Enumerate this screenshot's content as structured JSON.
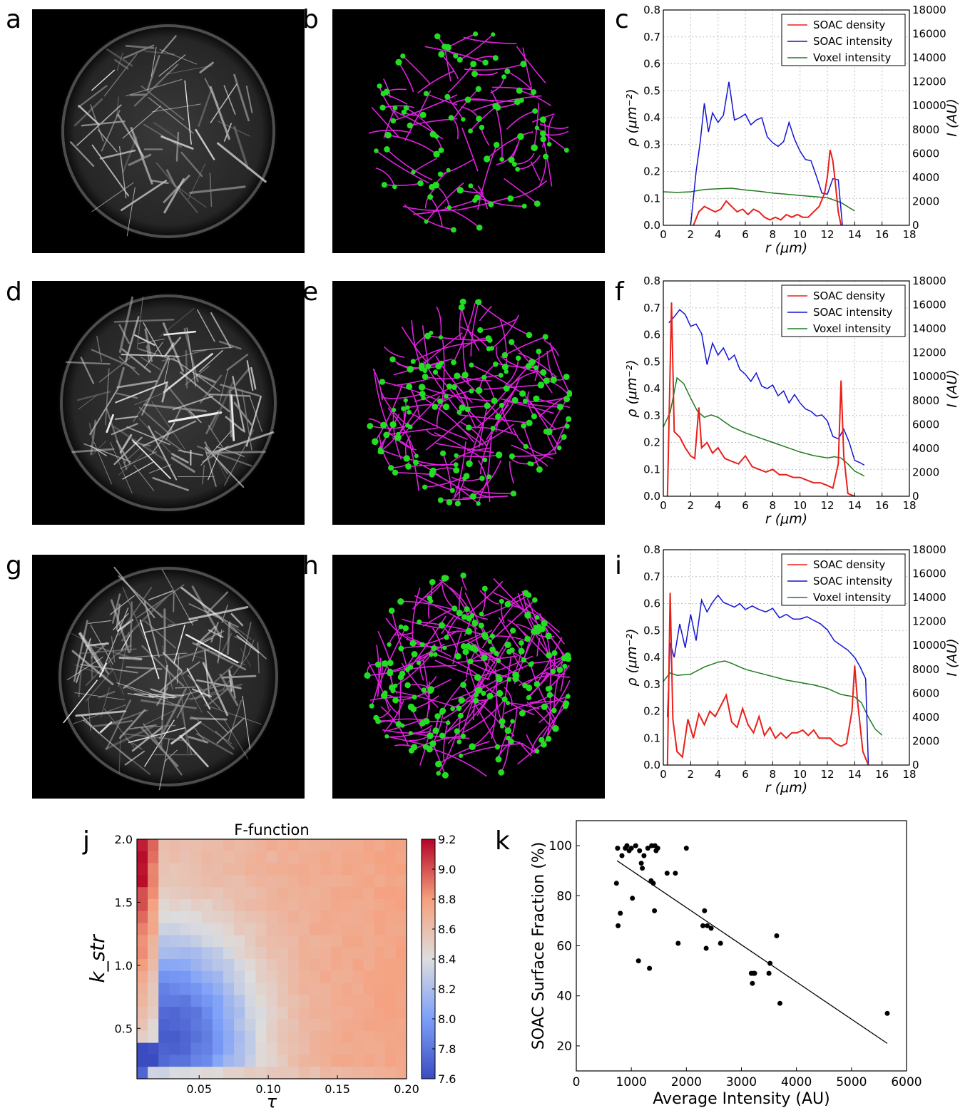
{
  "panel_letters": [
    "a",
    "b",
    "c",
    "d",
    "e",
    "f",
    "g",
    "h",
    "i",
    "j",
    "k"
  ],
  "colors": {
    "density": "#e8201a",
    "soac_intensity": "#1414d2",
    "voxel": "#1f7a1f",
    "filament": "#e020e0",
    "node": "#22dd22",
    "regression": "#000000"
  },
  "legend_labels": [
    "SOAC density",
    "SOAC intensity",
    "Voxel intensity"
  ],
  "profile_axes": {
    "xlabel": "r (μm)",
    "ylabel_left": "ρ (μm⁻²)",
    "ylabel_right": "I (AU)",
    "x_ticks": [
      "0",
      "2",
      "4",
      "6",
      "8",
      "10",
      "12",
      "14",
      "16",
      "18"
    ],
    "yleft_ticks": [
      "0.0",
      "0.1",
      "0.2",
      "0.3",
      "0.4",
      "0.5",
      "0.6",
      "0.7",
      "0.8"
    ],
    "yright_ticks": [
      "0",
      "2000",
      "4000",
      "6000",
      "8000",
      "10000",
      "12000",
      "14000",
      "16000",
      "18000"
    ]
  },
  "heatmap": {
    "title": "F-function",
    "xlabel": "τ",
    "ylabel": "k_str",
    "x_ticks": [
      "0.05",
      "0.10",
      "0.15",
      "0.20"
    ],
    "y_ticks": [
      "0.5",
      "1.0",
      "1.5",
      "2.0"
    ],
    "cbar_ticks": [
      "9.2",
      "9.0",
      "8.8",
      "8.6",
      "8.4",
      "8.2",
      "8.0",
      "7.8",
      "7.6"
    ]
  },
  "scatter_axes": {
    "xlabel": "Average Intensity (AU)",
    "ylabel": "SOAC Surface Fraction (%)",
    "x_ticks": [
      "0",
      "1000",
      "2000",
      "3000",
      "4000",
      "5000",
      "6000"
    ],
    "y_ticks": [
      "20",
      "40",
      "60",
      "80",
      "100"
    ]
  },
  "chart_data": [
    {
      "panel": "c",
      "type": "line",
      "xlim": [
        0,
        18
      ],
      "ylim_left": [
        0,
        0.8
      ],
      "ylim_right": [
        0,
        18000
      ],
      "grid": true,
      "legend_position": "top-right",
      "series": [
        {
          "name": "SOAC density",
          "axis": "left",
          "x": [
            2.2,
            2.6,
            3.0,
            3.4,
            3.8,
            4.2,
            4.6,
            5.0,
            5.4,
            5.8,
            6.2,
            6.6,
            7.0,
            7.4,
            7.8,
            8.2,
            8.6,
            9.0,
            9.4,
            9.8,
            10.2,
            10.6,
            11.0,
            11.4,
            11.8,
            12.0,
            12.2,
            12.4,
            12.6,
            12.8,
            13.0
          ],
          "y": [
            0.0,
            0.05,
            0.07,
            0.06,
            0.05,
            0.06,
            0.09,
            0.07,
            0.05,
            0.06,
            0.04,
            0.06,
            0.05,
            0.03,
            0.02,
            0.03,
            0.02,
            0.04,
            0.03,
            0.04,
            0.03,
            0.03,
            0.05,
            0.07,
            0.12,
            0.18,
            0.28,
            0.24,
            0.15,
            0.05,
            0.0
          ]
        },
        {
          "name": "SOAC intensity",
          "axis": "right",
          "x": [
            2.0,
            2.4,
            2.7,
            3.0,
            3.3,
            3.6,
            4.0,
            4.4,
            4.8,
            5.2,
            5.6,
            6.0,
            6.4,
            6.8,
            7.2,
            7.6,
            8.0,
            8.4,
            8.8,
            9.2,
            9.6,
            10.0,
            10.4,
            10.8,
            11.2,
            11.6,
            12.0,
            12.4,
            12.8,
            13.1
          ],
          "y": [
            0,
            4500,
            7000,
            10200,
            7800,
            9400,
            8600,
            9200,
            12000,
            8800,
            9000,
            9300,
            8400,
            8800,
            9000,
            7400,
            6900,
            6600,
            7000,
            8600,
            7200,
            6200,
            5500,
            5400,
            4100,
            2700,
            2600,
            3900,
            3800,
            0
          ]
        },
        {
          "name": "Voxel intensity",
          "axis": "right",
          "x": [
            0,
            1,
            2,
            3,
            4,
            5,
            6,
            7,
            8,
            9,
            10,
            11,
            12,
            13,
            14
          ],
          "y": [
            2800,
            2750,
            2800,
            3000,
            3050,
            3100,
            2950,
            2850,
            2700,
            2600,
            2500,
            2400,
            2300,
            1900,
            1200
          ]
        }
      ]
    },
    {
      "panel": "f",
      "type": "line",
      "xlim": [
        0,
        18
      ],
      "ylim_left": [
        0,
        0.8
      ],
      "ylim_right": [
        0,
        18000
      ],
      "grid": true,
      "legend_position": "top-right",
      "series": [
        {
          "name": "SOAC density",
          "axis": "left",
          "x": [
            0.3,
            0.6,
            0.8,
            1.2,
            1.6,
            2.0,
            2.3,
            2.6,
            2.8,
            3.2,
            3.6,
            4.0,
            4.5,
            5.0,
            5.5,
            6.0,
            6.5,
            7.0,
            7.5,
            8.0,
            8.5,
            9.0,
            9.5,
            10.0,
            10.5,
            11.0,
            11.5,
            12.0,
            12.4,
            12.8,
            13.0,
            13.2,
            13.5,
            14.0
          ],
          "y": [
            0.0,
            0.72,
            0.24,
            0.22,
            0.18,
            0.15,
            0.14,
            0.33,
            0.18,
            0.2,
            0.16,
            0.18,
            0.14,
            0.13,
            0.12,
            0.15,
            0.11,
            0.1,
            0.09,
            0.1,
            0.08,
            0.08,
            0.07,
            0.07,
            0.06,
            0.05,
            0.05,
            0.04,
            0.03,
            0.12,
            0.43,
            0.15,
            0.01,
            0.0
          ]
        },
        {
          "name": "SOAC intensity",
          "axis": "right",
          "x": [
            0.4,
            0.8,
            1.2,
            1.6,
            2.0,
            2.4,
            2.8,
            3.2,
            3.6,
            4.0,
            4.4,
            4.8,
            5.2,
            5.6,
            6.0,
            6.4,
            6.8,
            7.2,
            7.6,
            8.0,
            8.4,
            8.8,
            9.2,
            9.6,
            10.0,
            10.4,
            10.8,
            11.2,
            11.6,
            12.0,
            12.4,
            12.8,
            13.2,
            13.6,
            14.0,
            14.4,
            14.7
          ],
          "y": [
            14500,
            15000,
            15600,
            15200,
            14200,
            14400,
            13600,
            11000,
            12800,
            11800,
            12400,
            11400,
            11800,
            10600,
            10200,
            9600,
            10300,
            9200,
            9000,
            9300,
            8400,
            8800,
            7800,
            8500,
            7800,
            7300,
            7100,
            6700,
            6800,
            6300,
            5000,
            4800,
            5600,
            4500,
            3000,
            2800,
            2600
          ]
        },
        {
          "name": "Voxel intensity",
          "axis": "right",
          "x": [
            0,
            0.5,
            1.0,
            1.5,
            2.0,
            2.5,
            3.0,
            3.5,
            4.0,
            5,
            6,
            7,
            8,
            9,
            10,
            11,
            12,
            12.5,
            13,
            13.5,
            14,
            14.7
          ],
          "y": [
            5800,
            7000,
            9900,
            9400,
            8200,
            7100,
            6600,
            6800,
            6600,
            5800,
            5300,
            4900,
            4500,
            4100,
            3700,
            3400,
            3200,
            3300,
            3200,
            2700,
            2100,
            1700
          ]
        }
      ]
    },
    {
      "panel": "i",
      "type": "line",
      "xlim": [
        0,
        18
      ],
      "ylim_left": [
        0,
        0.8
      ],
      "ylim_right": [
        0,
        18000
      ],
      "grid": true,
      "legend_position": "top-right",
      "series": [
        {
          "name": "SOAC density",
          "axis": "left",
          "x": [
            0.3,
            0.5,
            0.7,
            1.0,
            1.4,
            1.8,
            2.2,
            2.6,
            3.0,
            3.4,
            3.8,
            4.2,
            4.6,
            5.0,
            5.4,
            5.8,
            6.2,
            6.6,
            7.0,
            7.4,
            7.8,
            8.2,
            8.6,
            9.0,
            9.4,
            9.8,
            10.2,
            10.6,
            11.0,
            11.4,
            11.8,
            12.2,
            12.6,
            13.0,
            13.4,
            13.8,
            14.0,
            14.2,
            14.6,
            15.0
          ],
          "y": [
            0.0,
            0.64,
            0.17,
            0.05,
            0.03,
            0.17,
            0.1,
            0.19,
            0.15,
            0.2,
            0.18,
            0.22,
            0.26,
            0.16,
            0.14,
            0.21,
            0.15,
            0.12,
            0.18,
            0.11,
            0.14,
            0.1,
            0.12,
            0.1,
            0.12,
            0.12,
            0.13,
            0.11,
            0.13,
            0.1,
            0.1,
            0.1,
            0.08,
            0.07,
            0.08,
            0.2,
            0.37,
            0.24,
            0.05,
            0.0
          ]
        },
        {
          "name": "SOAC intensity",
          "axis": "right",
          "x": [
            0.3,
            0.5,
            0.8,
            1.2,
            1.6,
            2.0,
            2.4,
            2.8,
            3.2,
            3.6,
            4.0,
            4.4,
            4.8,
            5.2,
            5.6,
            6.0,
            6.5,
            7.0,
            7.5,
            8.0,
            8.5,
            9.0,
            9.5,
            10.0,
            10.5,
            11.0,
            11.5,
            12.0,
            12.5,
            13.0,
            13.5,
            14.0,
            14.4,
            14.8,
            15.0
          ],
          "y": [
            4000,
            10200,
            9000,
            11800,
            9800,
            12600,
            10400,
            13800,
            12800,
            13600,
            14200,
            13600,
            13400,
            13200,
            13500,
            13000,
            13300,
            13000,
            12800,
            13100,
            12300,
            12600,
            12200,
            12200,
            12400,
            12100,
            11800,
            11300,
            10400,
            10000,
            9600,
            9000,
            8200,
            7200,
            0
          ]
        },
        {
          "name": "Voxel intensity",
          "axis": "right",
          "x": [
            0,
            0.5,
            1.0,
            2,
            3,
            4,
            4.5,
            5,
            6,
            7,
            8,
            9,
            10,
            11,
            12,
            13,
            13.5,
            14,
            14.5,
            15,
            15.5,
            16
          ],
          "y": [
            7000,
            7700,
            7500,
            7600,
            8200,
            8600,
            8700,
            8500,
            8000,
            7700,
            7400,
            7100,
            6900,
            6700,
            6400,
            5900,
            5800,
            5700,
            5200,
            4000,
            3000,
            2500
          ]
        }
      ]
    },
    {
      "panel": "j",
      "type": "heatmap",
      "title": "F-function",
      "x_range": [
        0.005,
        0.2
      ],
      "y_range": [
        0.1,
        2.0
      ],
      "color_range": [
        7.6,
        9.2
      ]
    },
    {
      "panel": "k",
      "type": "scatter",
      "xlim": [
        0,
        6000
      ],
      "ylim": [
        10,
        110
      ],
      "points": [
        [
          730,
          85
        ],
        [
          750,
          99
        ],
        [
          760,
          68
        ],
        [
          800,
          73
        ],
        [
          830,
          96
        ],
        [
          890,
          99
        ],
        [
          920,
          100
        ],
        [
          960,
          98
        ],
        [
          1000,
          99
        ],
        [
          1020,
          79
        ],
        [
          1080,
          100
        ],
        [
          1130,
          54
        ],
        [
          1150,
          98
        ],
        [
          1180,
          93
        ],
        [
          1200,
          91
        ],
        [
          1230,
          96
        ],
        [
          1300,
          99
        ],
        [
          1330,
          51
        ],
        [
          1360,
          86
        ],
        [
          1370,
          100
        ],
        [
          1400,
          85
        ],
        [
          1420,
          74
        ],
        [
          1430,
          100
        ],
        [
          1450,
          98
        ],
        [
          1480,
          99
        ],
        [
          1650,
          89
        ],
        [
          1800,
          89
        ],
        [
          1850,
          61
        ],
        [
          2000,
          99
        ],
        [
          2300,
          68
        ],
        [
          2330,
          74
        ],
        [
          2360,
          59
        ],
        [
          2380,
          68
        ],
        [
          2450,
          67
        ],
        [
          2620,
          61
        ],
        [
          3180,
          49
        ],
        [
          3200,
          45
        ],
        [
          3220,
          49
        ],
        [
          3240,
          49
        ],
        [
          3500,
          49
        ],
        [
          3520,
          53
        ],
        [
          3640,
          64
        ],
        [
          3700,
          37
        ],
        [
          5650,
          33
        ]
      ],
      "regression": {
        "x": [
          740,
          5650
        ],
        "y": [
          94,
          21
        ]
      }
    }
  ]
}
